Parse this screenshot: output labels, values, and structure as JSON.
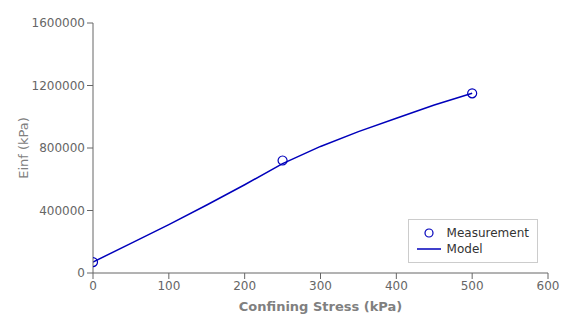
{
  "chart_data": {
    "type": "line",
    "xlabel": "Confining Stress (kPa)",
    "ylabel": "Einf (kPa)",
    "series": [
      {
        "name": "Measurement",
        "type": "scatter",
        "marker": "circle",
        "color": "#0000BB",
        "x": [
          0,
          250,
          500
        ],
        "values": [
          70000,
          720000,
          1150000
        ]
      },
      {
        "name": "Model",
        "type": "line",
        "marker": "none",
        "line_style": "solid",
        "color": "#0000BB",
        "x": [
          0,
          50,
          100,
          150,
          200,
          250,
          300,
          350,
          400,
          450,
          500
        ],
        "values": [
          70000,
          190000,
          310000,
          435000,
          565000,
          700000,
          810000,
          905000,
          990000,
          1075000,
          1150000
        ]
      }
    ],
    "xlim": [
      0,
      600
    ],
    "ylim": [
      0,
      1600000
    ],
    "xticks": [
      0,
      100,
      200,
      300,
      400,
      500,
      600
    ],
    "yticks": [
      0,
      400000,
      800000,
      1200000,
      1600000
    ],
    "grid": false,
    "legend": "lower right"
  }
}
